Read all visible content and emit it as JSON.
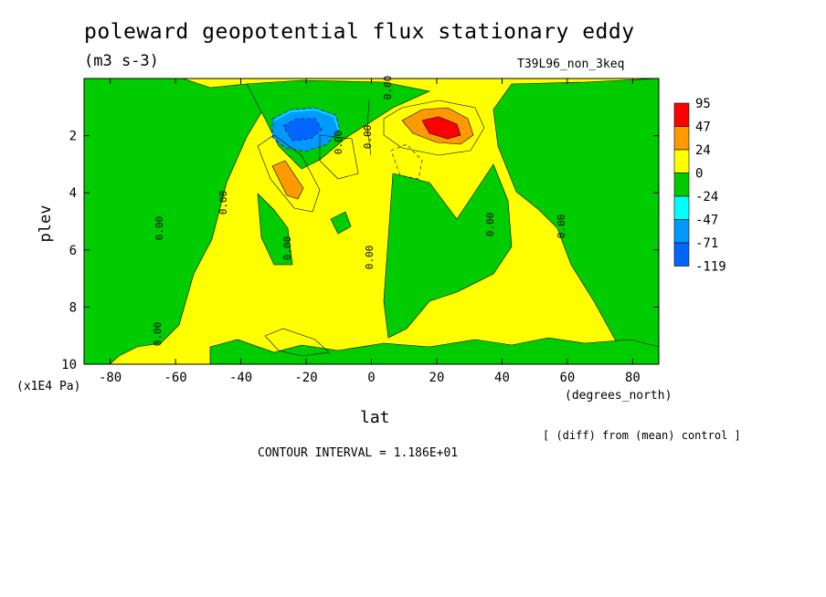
{
  "chart_data": {
    "type": "heatmap",
    "title": "poleward geopotential flux stationary eddy",
    "units": "(m3 s-3)",
    "experiment": "T39L96_non_3keq",
    "xlabel": "lat",
    "ylabel": "plev",
    "x_unit": "(degrees_north)",
    "y_scale_note": "(x1E4 Pa)",
    "x_ticks": [
      "-80",
      "-60",
      "-40",
      "-20",
      "0",
      "20",
      "40",
      "60",
      "80"
    ],
    "y_ticks": [
      "2",
      "4",
      "6",
      "8",
      "10"
    ],
    "xlim": [
      -88,
      88
    ],
    "ylim": [
      10,
      0
    ],
    "diff_note": "[ (diff) from (mean) control ]",
    "contour_interval": "CONTOUR INTERVAL = 1.186E+01",
    "contour_labels": [
      "0.00",
      "0.00",
      "0.00",
      "0.00",
      "0.00",
      "0.00",
      "0.00",
      "0.00",
      "0.00",
      "0.00"
    ],
    "colorbar": {
      "labels": [
        "95",
        "47",
        "24",
        "0",
        "-24",
        "-47",
        "-71",
        "-119"
      ],
      "colors": [
        "#ff0000",
        "#ff9900",
        "#ffff00",
        "#00cc00",
        "#00ffff",
        "#0099ff",
        "#0066ff"
      ]
    },
    "features": [
      {
        "kind": "negative-min",
        "lat": -20,
        "plev": 2.0,
        "value": -119
      },
      {
        "kind": "positive-max",
        "lat": 22,
        "plev": 1.9,
        "value": 95
      },
      {
        "kind": "positive",
        "lat": -26,
        "plev": 3.4,
        "value": 24
      }
    ]
  }
}
